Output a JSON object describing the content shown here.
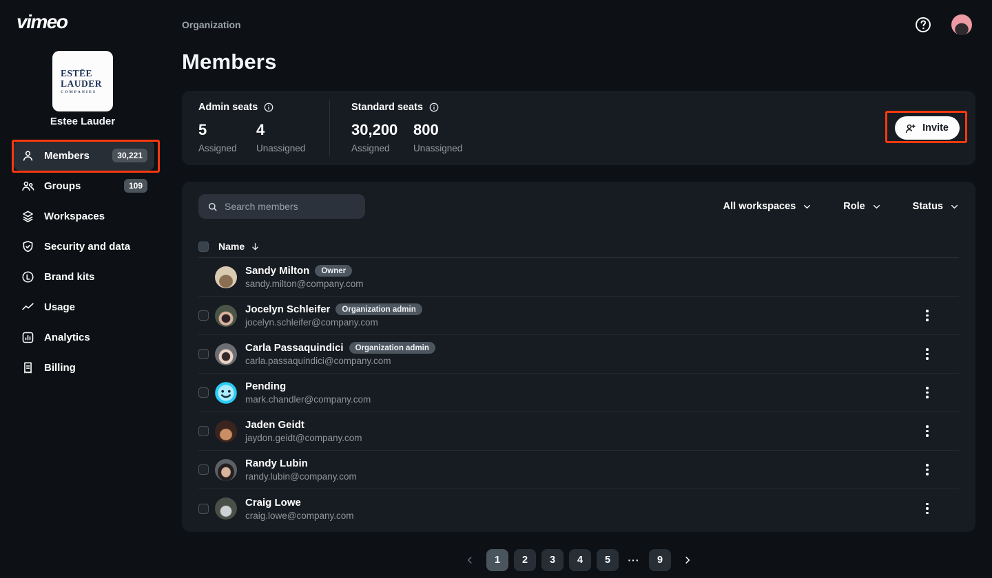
{
  "brand": {
    "logo_text": "vimeo"
  },
  "topbar": {
    "breadcrumb": "Organization"
  },
  "sidebar": {
    "org_logo": {
      "line1": "ESTĒE",
      "line2": "LAUDER",
      "line3": "COMPANIES"
    },
    "org_name": "Estee Lauder",
    "items": [
      {
        "label": "Members",
        "icon": "person",
        "badge": "30,221",
        "active": true
      },
      {
        "label": "Groups",
        "icon": "people",
        "badge": "109",
        "active": false
      },
      {
        "label": "Workspaces",
        "icon": "layers",
        "badge": null,
        "active": false
      },
      {
        "label": "Security and data",
        "icon": "shield",
        "badge": null,
        "active": false
      },
      {
        "label": "Brand kits",
        "icon": "brand",
        "badge": null,
        "active": false
      },
      {
        "label": "Usage",
        "icon": "trend",
        "badge": null,
        "active": false
      },
      {
        "label": "Analytics",
        "icon": "chart",
        "badge": null,
        "active": false
      },
      {
        "label": "Billing",
        "icon": "receipt",
        "badge": null,
        "active": false
      }
    ]
  },
  "page": {
    "title": "Members"
  },
  "seats": {
    "admin": {
      "label": "Admin seats",
      "assigned_value": "5",
      "assigned_label": "Assigned",
      "unassigned_value": "4",
      "unassigned_label": "Unassigned"
    },
    "standard": {
      "label": "Standard seats",
      "assigned_value": "30,200",
      "assigned_label": "Assigned",
      "unassigned_value": "800",
      "unassigned_label": "Unassigned"
    },
    "invite_label": "Invite"
  },
  "table": {
    "search_placeholder": "Search members",
    "filters": [
      {
        "label": "All workspaces"
      },
      {
        "label": "Role"
      },
      {
        "label": "Status"
      }
    ],
    "name_header": "Name",
    "rows": [
      {
        "name": "Sandy Milton",
        "badge": "Owner",
        "email": "sandy.milton@company.com",
        "avatar": "sandy",
        "checkbox": false,
        "kebab": false
      },
      {
        "name": "Jocelyn Schleifer",
        "badge": "Organization admin",
        "email": "jocelyn.schleifer@company.com",
        "avatar": "jocelyn",
        "checkbox": true,
        "kebab": true
      },
      {
        "name": "Carla Passaquindici",
        "badge": "Organization admin",
        "email": "carla.passaquindici@company.com",
        "avatar": "carla",
        "checkbox": true,
        "kebab": true
      },
      {
        "name": "Pending",
        "badge": null,
        "email": "mark.chandler@company.com",
        "avatar": "pending",
        "checkbox": true,
        "kebab": true
      },
      {
        "name": "Jaden Geidt",
        "badge": null,
        "email": "jaydon.geidt@company.com",
        "avatar": "jaden",
        "checkbox": true,
        "kebab": true
      },
      {
        "name": "Randy Lubin",
        "badge": null,
        "email": "randy.lubin@company.com",
        "avatar": "randy",
        "checkbox": true,
        "kebab": true
      },
      {
        "name": "Craig Lowe",
        "badge": null,
        "email": "craig.lowe@company.com",
        "avatar": "craig",
        "checkbox": true,
        "kebab": true
      }
    ]
  },
  "pagination": {
    "pages": [
      "1",
      "2",
      "3",
      "4",
      "5"
    ],
    "active_page": "1",
    "ellipsis": "···",
    "last_page": "9"
  },
  "colors": {
    "accent_annotation": "#fa390f",
    "card_bg": "#171c22",
    "page_bg": "#0d1115",
    "pending_cyan": "#29cdf8",
    "badge_bg": "#4d565f"
  }
}
